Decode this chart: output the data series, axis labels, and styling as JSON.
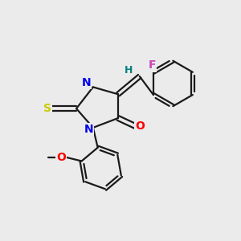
{
  "background_color": "#ebebeb",
  "bond_color": "#1a1a1a",
  "atom_colors": {
    "N": "#0000ee",
    "O": "#ff0000",
    "S": "#cccc00",
    "F": "#cc44bb",
    "H": "#008080",
    "C": "#1a1a1a"
  },
  "figsize": [
    3.0,
    3.0
  ],
  "dpi": 100,
  "lw": 1.6,
  "fs": 9.5
}
